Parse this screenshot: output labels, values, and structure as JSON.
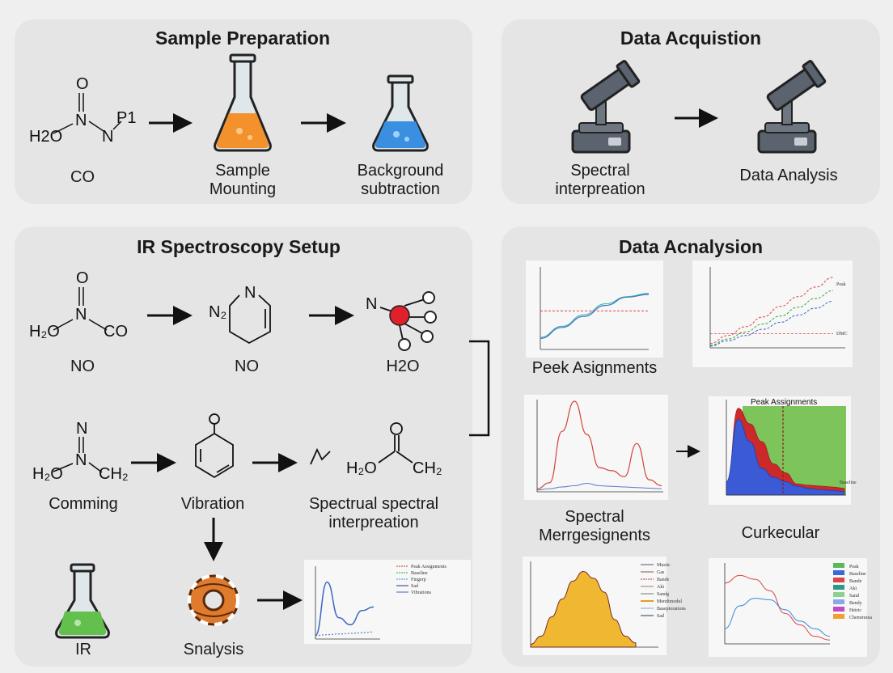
{
  "panels": {
    "sample_prep": {
      "title": "Sample Preparation",
      "molecule": {
        "a": "O",
        "b": "N",
        "c": "N",
        "d": "P1",
        "e": "H2O"
      },
      "labels": [
        "CO",
        "Sample\nMounting",
        "Background\nsubtraction"
      ]
    },
    "acquisition": {
      "title": "Data Acquistion",
      "labels": [
        "Spectral\ninterpreation",
        "Data Analysis"
      ]
    },
    "ir_setup": {
      "title": "IR Spectroscopy Setup",
      "row1_labels": [
        "NO",
        "NO",
        "H2O"
      ],
      "row2_labels": [
        "Comming",
        "Vibration",
        "Spectrual spectral\ninterpreation"
      ],
      "row3_labels": [
        "IR",
        "Snalysis"
      ],
      "legend": [
        "Peak Assignments",
        "Baseline",
        "Fingerp",
        "Sad",
        "Vibrations"
      ]
    },
    "analysis": {
      "title": "Data Acnalysion",
      "chart_titles": [
        "Peek Asignments",
        "Peak Assignments"
      ],
      "section_labels": [
        "Spectral\nMerrgesignents",
        "Curkecular"
      ],
      "legend_a": [
        "Peak",
        "DMC"
      ],
      "legend_b": [
        "Baseline"
      ],
      "legend_c": [
        "Mustic",
        "Gas",
        "Bande",
        "Aki",
        "Sandg",
        "Mendimodul",
        "Baseptorations",
        "Sad"
      ],
      "legend_d": [
        "Peak",
        "Baseline",
        "Bande",
        "Aki",
        "Sand",
        "Bendy",
        "Heiric",
        "Chemimina"
      ]
    }
  },
  "chart_data": [
    {
      "type": "line",
      "title": "",
      "x": [
        0,
        2,
        4,
        6,
        8,
        10
      ],
      "series": [
        {
          "values": [
            2,
            4,
            6,
            8,
            9.5,
            10
          ]
        },
        {
          "values": [
            2.2,
            4.2,
            6.3,
            8.3,
            9.6,
            10.2
          ]
        },
        {
          "values": [
            7,
            7,
            7,
            7,
            7,
            7
          ]
        }
      ],
      "ylim": [
        0,
        15
      ],
      "xlim": [
        0,
        10
      ]
    },
    {
      "type": "line",
      "title": "",
      "x": [
        0,
        1,
        2,
        3,
        4,
        5,
        6,
        7
      ],
      "series": [
        {
          "name": "Peak",
          "values": [
            0.5,
            1.4,
            2.4,
            3.5,
            4.7,
            5.8,
            6.9,
            8
          ]
        },
        {
          "values": [
            0.3,
            1.0,
            1.8,
            2.7,
            3.6,
            4.6,
            5.6,
            6.5
          ]
        },
        {
          "values": [
            0.2,
            0.8,
            1.4,
            2.1,
            2.9,
            3.7,
            4.5,
            5.3
          ]
        },
        {
          "name": "DMC",
          "values": [
            1.6,
            1.6,
            1.6,
            1.6,
            1.6,
            1.6,
            1.6,
            1.6
          ]
        }
      ],
      "ylim": [
        0,
        9
      ],
      "xlim": [
        0,
        7
      ]
    },
    {
      "type": "line",
      "title": "",
      "x": [
        0,
        1,
        2,
        3,
        4,
        5,
        6,
        7,
        8,
        9,
        10
      ],
      "series": [
        {
          "values": [
            5,
            15,
            100,
            150,
            95,
            40,
            35,
            25,
            80,
            20,
            10
          ]
        },
        {
          "values": [
            3,
            5,
            8,
            10,
            14,
            10,
            9,
            8,
            7,
            6,
            5
          ]
        }
      ],
      "ylim": [
        0,
        150
      ],
      "xlim": [
        0,
        10
      ]
    },
    {
      "type": "area",
      "title": "Peak Assignments",
      "x": [
        0,
        0.5,
        1,
        1.5,
        2,
        2.5,
        3,
        3.5,
        4,
        4.5,
        5
      ],
      "series": [
        {
          "values": [
            30,
            170,
            120,
            60,
            40,
            30,
            20,
            15,
            12,
            10,
            8
          ]
        },
        {
          "values": [
            10,
            195,
            160,
            120,
            70,
            50,
            25,
            22,
            20,
            18,
            15
          ]
        }
      ],
      "legend": [
        "Baseline"
      ],
      "ylim": [
        0,
        200
      ],
      "xlim": [
        0,
        5
      ]
    },
    {
      "type": "area",
      "title": "",
      "x": [
        0,
        1,
        2,
        3,
        4,
        5,
        6,
        7,
        8,
        9,
        10
      ],
      "series": [
        {
          "values": [
            2,
            8,
            22,
            35,
            48,
            55,
            50,
            40,
            20,
            8,
            3
          ]
        }
      ],
      "ylim": [
        0,
        60
      ],
      "xlim": [
        0,
        10
      ]
    },
    {
      "type": "line",
      "title": "",
      "x": [
        0,
        1,
        2,
        3,
        4,
        5,
        6,
        7
      ],
      "series": [
        {
          "values": [
            8,
            9,
            8.5,
            7,
            4,
            2.5,
            1,
            0.5
          ]
        },
        {
          "values": [
            2,
            5,
            6,
            5.8,
            4.5,
            3,
            2,
            1
          ]
        }
      ],
      "ylim": [
        0,
        10
      ],
      "xlim": [
        0,
        7
      ]
    },
    {
      "type": "line",
      "title": "",
      "x": [
        0,
        1,
        2,
        3,
        4,
        5
      ],
      "series": [
        {
          "values": [
            5,
            80,
            30,
            20,
            40,
            45
          ]
        },
        {
          "values": [
            5,
            6,
            7,
            8,
            9,
            10
          ]
        }
      ],
      "ylim": [
        0,
        100
      ],
      "xlim": [
        0,
        5
      ]
    }
  ]
}
